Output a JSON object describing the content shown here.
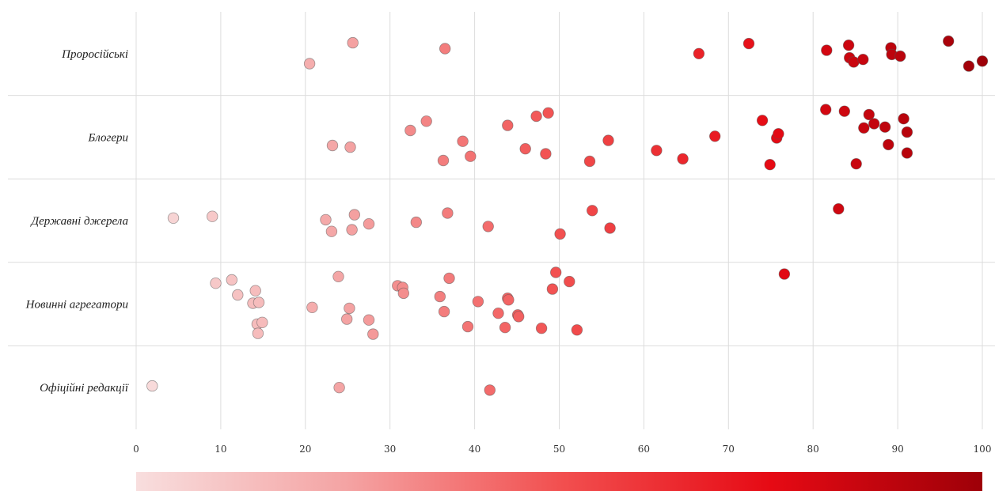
{
  "chart_data": {
    "type": "scatter",
    "title": "",
    "xlabel": "",
    "ylabel": "",
    "xlim": [
      0,
      100
    ],
    "x_ticks": [
      0,
      10,
      20,
      30,
      40,
      50,
      60,
      70,
      80,
      90,
      100
    ],
    "grid": true,
    "color_scale": {
      "min": 0,
      "max": 100,
      "colors": [
        "#f8dede",
        "#f4a3a3",
        "#f25050",
        "#e60a14",
        "#9e0008"
      ]
    },
    "categories": [
      "Проросійські",
      "Блогери",
      "Державні джерела",
      "Новинні агрегатори",
      "Офіційні редакції"
    ],
    "series": [
      {
        "category": "Проросійські",
        "points": [
          [
            20.5,
            -0.12
          ],
          [
            25.6,
            0.13
          ],
          [
            36.5,
            0.06
          ],
          [
            66.5,
            0.0
          ],
          [
            72.4,
            0.12
          ],
          [
            81.6,
            0.04
          ],
          [
            84.2,
            0.1
          ],
          [
            84.3,
            -0.05
          ],
          [
            84.8,
            -0.1
          ],
          [
            85.9,
            -0.07
          ],
          [
            89.2,
            0.07
          ],
          [
            89.3,
            -0.01
          ],
          [
            90.3,
            -0.03
          ],
          [
            96.0,
            0.15
          ],
          [
            98.4,
            -0.15
          ],
          [
            100.0,
            -0.09
          ]
        ]
      },
      {
        "category": "Блогери",
        "points": [
          [
            23.2,
            -0.1
          ],
          [
            25.3,
            -0.12
          ],
          [
            32.4,
            0.08
          ],
          [
            34.3,
            0.19
          ],
          [
            36.3,
            -0.28
          ],
          [
            38.6,
            -0.05
          ],
          [
            39.5,
            -0.23
          ],
          [
            43.9,
            0.14
          ],
          [
            46.0,
            -0.14
          ],
          [
            47.3,
            0.25
          ],
          [
            48.4,
            -0.2
          ],
          [
            48.7,
            0.29
          ],
          [
            53.6,
            -0.29
          ],
          [
            55.8,
            -0.04
          ],
          [
            61.5,
            -0.16
          ],
          [
            64.6,
            -0.26
          ],
          [
            68.4,
            0.01
          ],
          [
            74.0,
            0.2
          ],
          [
            74.9,
            -0.33
          ],
          [
            75.7,
            -0.01
          ],
          [
            75.9,
            0.04
          ],
          [
            81.5,
            0.33
          ],
          [
            83.7,
            0.31
          ],
          [
            85.1,
            -0.32
          ],
          [
            86.0,
            0.11
          ],
          [
            86.6,
            0.27
          ],
          [
            87.2,
            0.16
          ],
          [
            88.5,
            0.12
          ],
          [
            88.9,
            -0.09
          ],
          [
            90.7,
            0.22
          ],
          [
            91.1,
            0.06
          ],
          [
            91.1,
            -0.19
          ]
        ]
      },
      {
        "category": "Державні джерела",
        "points": [
          [
            4.4,
            0.03
          ],
          [
            9.0,
            0.05
          ],
          [
            22.4,
            0.01
          ],
          [
            23.1,
            -0.13
          ],
          [
            25.5,
            -0.11
          ],
          [
            25.8,
            0.07
          ],
          [
            27.5,
            -0.04
          ],
          [
            33.1,
            -0.02
          ],
          [
            36.8,
            0.09
          ],
          [
            41.6,
            -0.07
          ],
          [
            50.1,
            -0.16
          ],
          [
            53.9,
            0.12
          ],
          [
            56.0,
            -0.09
          ],
          [
            83.0,
            0.14
          ]
        ]
      },
      {
        "category": "Новинні агрегатори",
        "points": [
          [
            9.4,
            0.25
          ],
          [
            11.3,
            0.29
          ],
          [
            12.0,
            0.11
          ],
          [
            13.8,
            0.01
          ],
          [
            14.1,
            0.16
          ],
          [
            14.3,
            -0.24
          ],
          [
            14.4,
            -0.35
          ],
          [
            14.5,
            0.02
          ],
          [
            14.9,
            -0.22
          ],
          [
            20.8,
            -0.04
          ],
          [
            23.9,
            0.33
          ],
          [
            24.9,
            -0.18
          ],
          [
            25.2,
            -0.05
          ],
          [
            27.5,
            -0.19
          ],
          [
            28.0,
            -0.36
          ],
          [
            30.9,
            0.22
          ],
          [
            31.5,
            0.2
          ],
          [
            31.6,
            0.13
          ],
          [
            35.9,
            0.09
          ],
          [
            36.4,
            -0.09
          ],
          [
            37.0,
            0.31
          ],
          [
            39.2,
            -0.27
          ],
          [
            40.4,
            0.03
          ],
          [
            42.8,
            -0.11
          ],
          [
            43.6,
            -0.28
          ],
          [
            43.9,
            0.07
          ],
          [
            44.0,
            0.05
          ],
          [
            45.1,
            -0.13
          ],
          [
            45.2,
            -0.15
          ],
          [
            47.9,
            -0.29
          ],
          [
            49.2,
            0.18
          ],
          [
            49.6,
            0.38
          ],
          [
            51.2,
            0.27
          ],
          [
            52.1,
            -0.31
          ],
          [
            76.6,
            0.36
          ]
        ]
      },
      {
        "category": "Офіційні редакції",
        "points": [
          [
            1.9,
            0.02
          ],
          [
            24.0,
            0.0
          ],
          [
            41.8,
            -0.03
          ]
        ]
      }
    ]
  }
}
